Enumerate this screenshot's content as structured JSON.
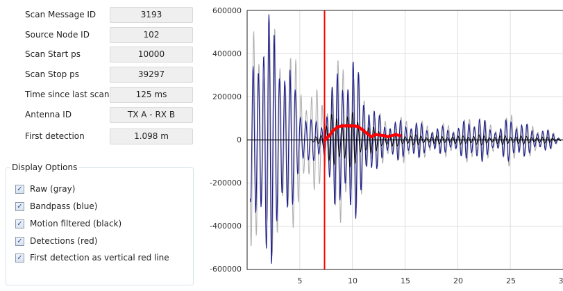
{
  "fields": [
    {
      "label": "Scan Message ID",
      "value": "3193"
    },
    {
      "label": "Source Node ID",
      "value": "102"
    },
    {
      "label": "Scan Start ps",
      "value": "10000"
    },
    {
      "label": "Scan Stop ps",
      "value": "39297"
    },
    {
      "label": "Time since last scan",
      "value": "125 ms"
    },
    {
      "label": "Antenna ID",
      "value": "TX A - RX B"
    },
    {
      "label": "First detection",
      "value": "1.098 m"
    }
  ],
  "display_options": {
    "title": "Display Options",
    "items": [
      {
        "label": "Raw (gray)",
        "checked": true
      },
      {
        "label": "Bandpass (blue)",
        "checked": true
      },
      {
        "label": "Motion filtered (black)",
        "checked": true
      },
      {
        "label": "Detections (red)",
        "checked": true
      },
      {
        "label": "First detection as vertical red line",
        "checked": true
      }
    ]
  },
  "chart_data": {
    "type": "line",
    "xlim": [
      0,
      30
    ],
    "ylim": [
      -600000,
      600000
    ],
    "xticks": [
      "5",
      "10",
      "15",
      "20",
      "25",
      "3"
    ],
    "yticks": [
      "600000",
      "400000",
      "200000",
      "0",
      "-200000",
      "-400000",
      "-600000"
    ],
    "grid": true,
    "envelope_x": [
      0,
      1,
      2,
      3,
      4,
      5,
      6,
      7,
      8,
      9,
      10,
      11,
      12,
      13,
      14,
      15,
      16,
      17,
      18,
      19,
      20,
      21,
      22,
      23,
      24,
      25,
      26,
      27,
      28,
      29,
      30
    ],
    "series": [
      {
        "color": "#b0b0b0",
        "envelope": [
          500000,
          520000,
          600000,
          480000,
          500000,
          300000,
          260000,
          220000,
          260000,
          440000,
          400000,
          250000,
          150000,
          110000,
          100000,
          110000,
          100000,
          80000,
          70000,
          80000,
          70000,
          110000,
          120000,
          80000,
          70000,
          130000,
          100000,
          70000,
          60000,
          40000,
          0
        ]
      },
      {
        "color": "#1c1c8c",
        "envelope": [
          150000,
          600000,
          600000,
          550000,
          350000,
          200000,
          100000,
          90000,
          250000,
          410000,
          400000,
          290000,
          150000,
          100000,
          90000,
          100000,
          90000,
          70000,
          60000,
          70000,
          60000,
          110000,
          120000,
          70000,
          60000,
          120000,
          90000,
          60000,
          55000,
          40000,
          0
        ]
      },
      {
        "color": "#000000",
        "envelope": [
          0,
          0,
          0,
          0,
          0,
          0,
          0,
          40000,
          120000,
          150000,
          130000,
          90000,
          60000,
          40000,
          30000,
          30000,
          25000,
          20000,
          20000,
          20000,
          20000,
          25000,
          25000,
          20000,
          20000,
          25000,
          20000,
          20000,
          15000,
          15000,
          0
        ]
      }
    ],
    "detections": {
      "color": "#ff0000",
      "x": [
        7.4,
        7.8,
        8.2,
        8.6,
        9.0,
        9.4,
        9.8,
        10.2,
        10.6,
        11.0,
        11.4,
        11.8,
        12.2,
        13.0,
        13.4,
        14.1,
        14.5
      ],
      "y": [
        0,
        20000,
        45000,
        60000,
        65000,
        65000,
        65000,
        65000,
        60000,
        45000,
        30000,
        15000,
        25000,
        20000,
        15000,
        25000,
        20000
      ]
    },
    "first_detection_x": 7.35
  }
}
